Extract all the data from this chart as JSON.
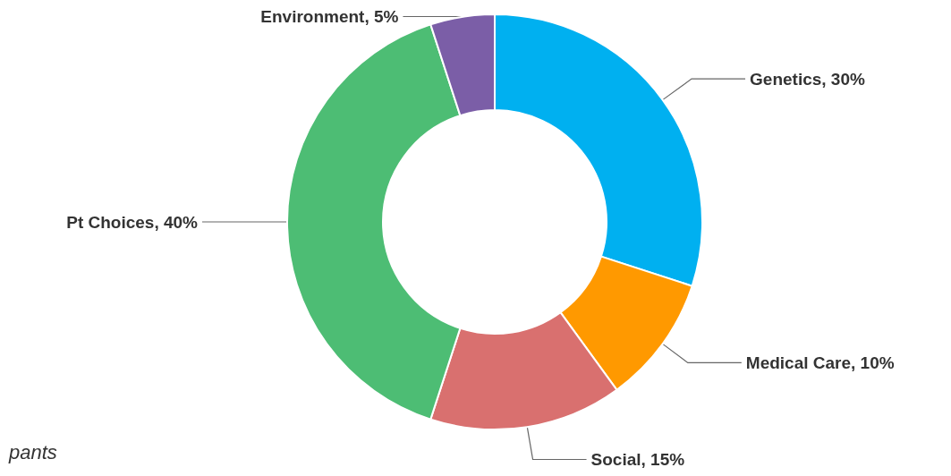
{
  "chart_data": {
    "type": "donut",
    "categories": [
      "Genetics",
      "Medical Care",
      "Social",
      "Pt Choices",
      "Environment"
    ],
    "values": [
      30,
      10,
      15,
      40,
      5
    ],
    "value_labels": [
      "30%",
      "10%",
      "15%",
      "40%",
      "5%"
    ],
    "colors": [
      "#00b0f0",
      "#ff9900",
      "#d9706f",
      "#4dbd74",
      "#7b5ea7"
    ],
    "annotations": [
      "pants"
    ]
  }
}
